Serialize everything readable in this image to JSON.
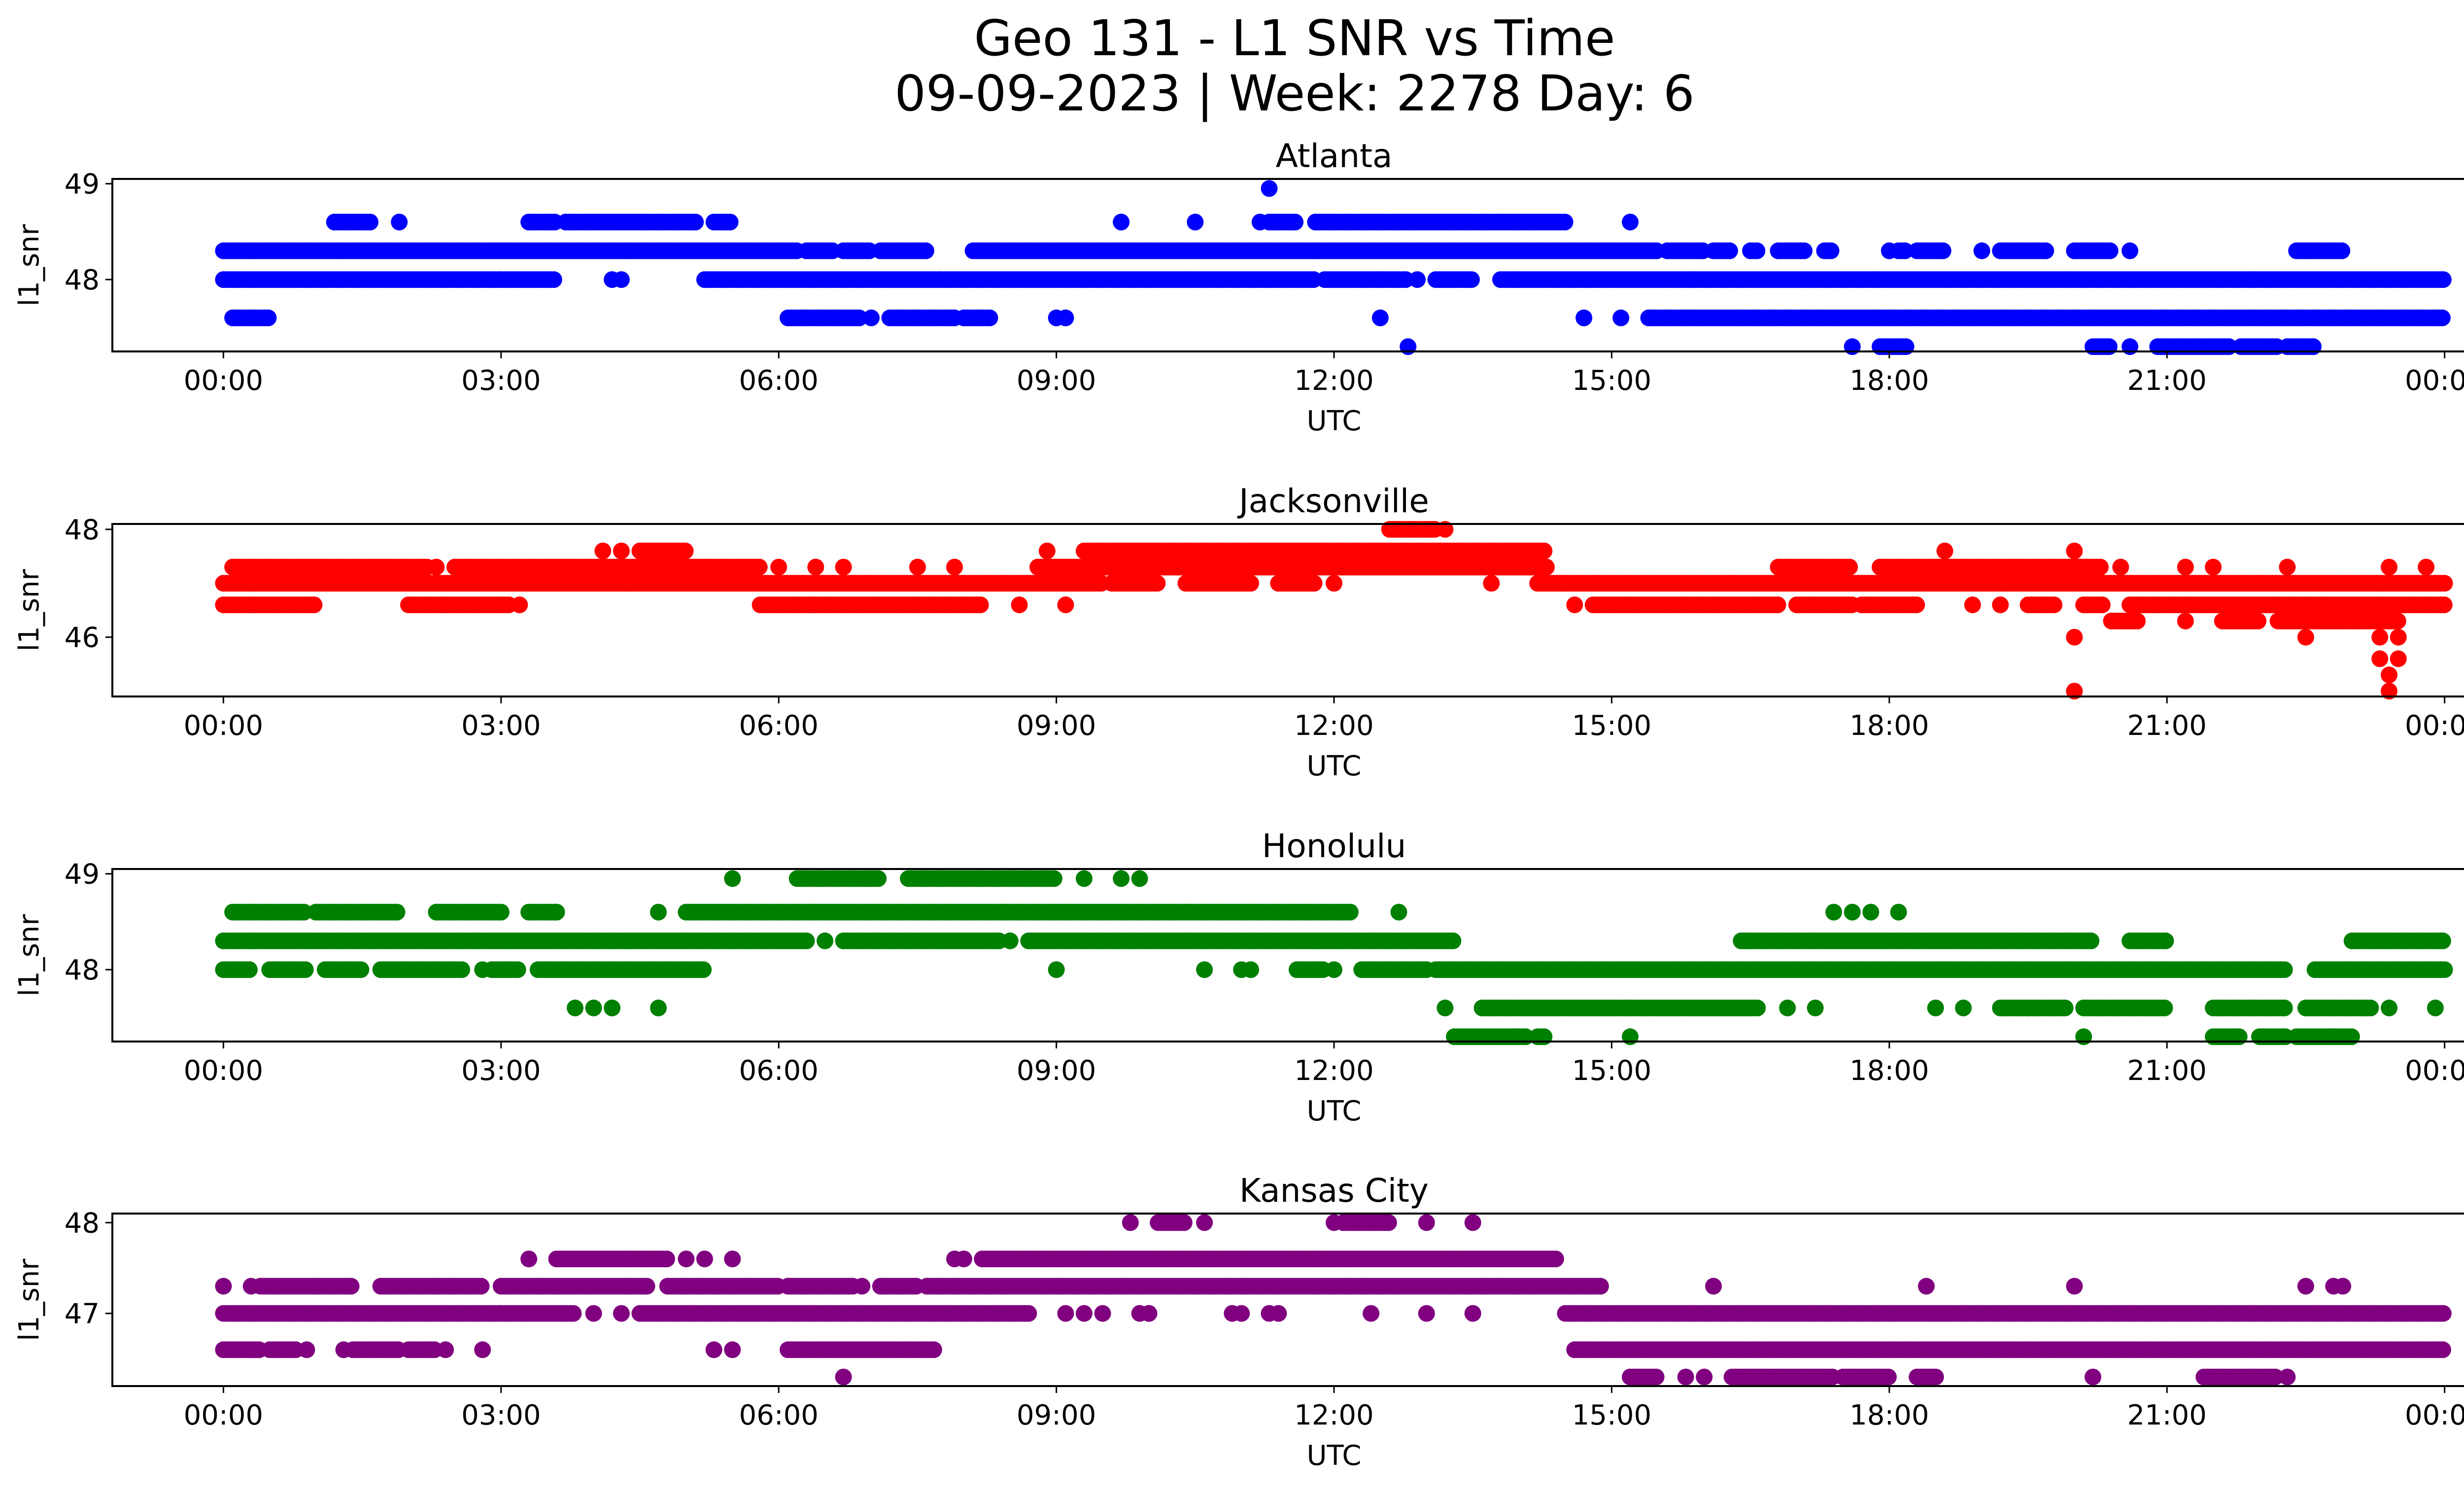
{
  "figure": {
    "title_line1": "Geo 131 - L1 SNR vs Time",
    "title_line2": "09-09-2023 | Week: 2278 Day: 6"
  },
  "chart_data": [
    {
      "type": "scatter",
      "title": "Atlanta",
      "xlabel": "UTC",
      "ylabel": "l1_snr",
      "color": "#0000ff",
      "x_ticks": [
        "00:00",
        "03:00",
        "06:00",
        "09:00",
        "12:00",
        "15:00",
        "18:00",
        "21:00",
        "00:00"
      ],
      "x_unit": "hours UTC",
      "xlim": [
        -1.2,
        25.2
      ],
      "y_ticks": [
        48,
        49
      ],
      "ylim": [
        47.25,
        49.05
      ],
      "series": [
        {
          "y": 48.3,
          "ranges": [
            [
              0.0,
              6.2
            ],
            [
              6.3,
              6.6
            ],
            [
              6.7,
              7.0
            ],
            [
              7.1,
              7.6
            ],
            [
              8.1,
              15.5
            ],
            [
              15.6,
              16.0
            ],
            [
              16.1,
              16.3
            ],
            [
              16.5,
              16.6
            ],
            [
              16.8,
              17.1
            ],
            [
              17.3,
              17.4
            ],
            [
              18.1,
              18.2
            ],
            [
              18.3,
              18.6
            ],
            [
              19.2,
              19.7
            ],
            [
              20.0,
              20.4
            ],
            [
              22.4,
              22.9
            ]
          ],
          "points": [
            18.0,
            19.0,
            20.6,
            22.5
          ]
        },
        {
          "y": 48.0,
          "ranges": [
            [
              0.0,
              3.6
            ],
            [
              5.2,
              11.8
            ],
            [
              11.9,
              12.8
            ],
            [
              13.1,
              13.5
            ],
            [
              13.8,
              24.0
            ]
          ],
          "points": [
            4.2,
            4.3,
            12.9,
            13.2,
            14.0
          ]
        },
        {
          "y": 47.6,
          "ranges": [
            [
              0.1,
              0.5
            ],
            [
              6.1,
              6.9
            ],
            [
              7.2,
              7.9
            ],
            [
              8.0,
              8.3
            ],
            [
              15.4,
              24.0
            ]
          ],
          "points": [
            8.2,
            9.0,
            9.1,
            12.5,
            14.7,
            15.1,
            7.0,
            7.3
          ]
        },
        {
          "y": 48.6,
          "ranges": [
            [
              1.2,
              1.6
            ],
            [
              3.3,
              3.6
            ],
            [
              3.7,
              5.1
            ],
            [
              5.3,
              5.5
            ],
            [
              11.3,
              11.6
            ],
            [
              11.8,
              14.5
            ]
          ],
          "points": [
            1.9,
            9.7,
            10.5,
            11.2,
            15.2
          ]
        },
        {
          "y": 48.95,
          "ranges": [],
          "points": [
            11.3
          ]
        },
        {
          "y": 47.3,
          "ranges": [
            [
              17.9,
              18.2
            ],
            [
              20.2,
              20.4
            ],
            [
              20.9,
              21.7
            ],
            [
              21.8,
              22.2
            ],
            [
              22.3,
              22.6
            ]
          ],
          "points": [
            12.8,
            17.6,
            20.6,
            21.9
          ]
        }
      ]
    },
    {
      "type": "scatter",
      "title": "Jacksonville",
      "xlabel": "UTC",
      "ylabel": "l1_snr",
      "color": "#ff0000",
      "x_ticks": [
        "00:00",
        "03:00",
        "06:00",
        "09:00",
        "12:00",
        "15:00",
        "18:00",
        "21:00",
        "00:00"
      ],
      "x_unit": "hours UTC",
      "xlim": [
        -1.2,
        25.2
      ],
      "y_ticks": [
        46,
        48
      ],
      "ylim": [
        44.9,
        48.1
      ],
      "series": [
        {
          "y": 47.0,
          "ranges": [
            [
              0.0,
              9.5
            ],
            [
              9.6,
              10.1
            ],
            [
              10.4,
              11.1
            ],
            [
              11.4,
              11.8
            ],
            [
              14.2,
              24.0
            ]
          ],
          "points": [
            12.0,
            13.7
          ]
        },
        {
          "y": 47.3,
          "ranges": [
            [
              0.1,
              2.2
            ],
            [
              2.5,
              5.8
            ],
            [
              8.8,
              14.3
            ],
            [
              17.9,
              20.3
            ],
            [
              16.8,
              17.6
            ]
          ],
          "points": [
            2.3,
            6.0,
            6.4,
            6.7,
            7.5,
            7.9,
            20.5,
            21.2,
            21.5,
            22.3,
            23.4,
            23.8
          ]
        },
        {
          "y": 46.6,
          "ranges": [
            [
              0.0,
              1.0
            ],
            [
              2.0,
              3.1
            ],
            [
              5.8,
              8.2
            ],
            [
              14.8,
              16.8
            ],
            [
              17.0,
              17.6
            ],
            [
              17.7,
              18.3
            ],
            [
              19.5,
              19.8
            ],
            [
              20.1,
              20.3
            ],
            [
              20.6,
              24.0
            ]
          ],
          "points": [
            3.2,
            8.6,
            9.1,
            14.6,
            18.9,
            19.2,
            20.3
          ]
        },
        {
          "y": 47.6,
          "ranges": [
            [
              4.5,
              5.0
            ],
            [
              9.3,
              14.3
            ]
          ],
          "points": [
            4.1,
            4.3,
            8.9,
            18.6,
            20.0
          ]
        },
        {
          "y": 48.0,
          "ranges": [
            [
              12.6,
              13.1
            ]
          ],
          "points": [
            13.2
          ]
        },
        {
          "y": 46.3,
          "ranges": [
            [
              20.4,
              20.7
            ],
            [
              21.6,
              22.0
            ],
            [
              22.2,
              23.5
            ]
          ],
          "points": [
            21.2,
            21.7,
            20.6
          ]
        },
        {
          "y": 46.0,
          "ranges": [],
          "points": [
            20.0,
            22.5,
            23.3,
            23.5
          ]
        },
        {
          "y": 45.6,
          "ranges": [],
          "points": [
            23.3,
            23.5
          ]
        },
        {
          "y": 45.3,
          "ranges": [],
          "points": [
            23.4
          ]
        },
        {
          "y": 45.0,
          "ranges": [],
          "points": [
            20.0,
            23.4
          ]
        }
      ]
    },
    {
      "type": "scatter",
      "title": "Honolulu",
      "xlabel": "UTC",
      "ylabel": "l1_snr",
      "color": "#008000",
      "x_ticks": [
        "00:00",
        "03:00",
        "06:00",
        "09:00",
        "12:00",
        "15:00",
        "18:00",
        "21:00",
        "00:00"
      ],
      "x_unit": "hours UTC",
      "xlim": [
        -1.2,
        25.2
      ],
      "y_ticks": [
        48,
        49
      ],
      "ylim": [
        47.25,
        49.05
      ],
      "series": [
        {
          "y": 48.3,
          "ranges": [
            [
              0.0,
              6.3
            ],
            [
              6.7,
              8.4
            ],
            [
              8.7,
              13.3
            ],
            [
              16.4,
              20.2
            ],
            [
              20.6,
              21.0
            ],
            [
              23.0,
              24.0
            ]
          ],
          "points": [
            6.5,
            8.5
          ]
        },
        {
          "y": 48.0,
          "ranges": [
            [
              0.0,
              0.3
            ],
            [
              0.5,
              0.9
            ],
            [
              1.1,
              1.5
            ],
            [
              1.7,
              2.6
            ],
            [
              2.9,
              3.2
            ],
            [
              3.4,
              5.2
            ],
            [
              11.6,
              11.9
            ],
            [
              12.3,
              13.0
            ],
            [
              13.1,
              22.3
            ],
            [
              22.6,
              24.0
            ]
          ],
          "points": [
            1.2,
            2.8,
            9.0,
            10.6,
            11.0,
            11.1,
            12.0
          ]
        },
        {
          "y": 48.6,
          "ranges": [
            [
              0.1,
              0.9
            ],
            [
              1.0,
              1.9
            ],
            [
              2.3,
              3.0
            ],
            [
              3.3,
              3.6
            ],
            [
              5.0,
              12.2
            ]
          ],
          "points": [
            3.6,
            4.7,
            12.7,
            17.4,
            17.6,
            17.8,
            18.1
          ]
        },
        {
          "y": 48.95,
          "ranges": [
            [
              6.2,
              7.1
            ],
            [
              7.4,
              9.0
            ]
          ],
          "points": [
            5.5,
            9.3,
            9.7,
            9.9
          ]
        },
        {
          "y": 47.6,
          "ranges": [
            [
              13.6,
              16.6
            ],
            [
              19.2,
              19.9
            ],
            [
              20.1,
              21.0
            ],
            [
              21.5,
              22.3
            ],
            [
              22.5,
              23.2
            ]
          ],
          "points": [
            3.8,
            4.0,
            4.2,
            4.7,
            13.2,
            16.9,
            17.2,
            18.5,
            18.8,
            19.5,
            23.4,
            23.9
          ]
        },
        {
          "y": 47.3,
          "ranges": [
            [
              13.3,
              14.1
            ],
            [
              14.2,
              14.3
            ],
            [
              21.5,
              21.8
            ],
            [
              22.0,
              22.3
            ],
            [
              22.4,
              23.0
            ]
          ],
          "points": [
            15.2,
            20.1
          ]
        }
      ]
    },
    {
      "type": "scatter",
      "title": "Kansas City",
      "xlabel": "UTC",
      "ylabel": "l1_snr",
      "color": "#800080",
      "x_ticks": [
        "00:00",
        "03:00",
        "06:00",
        "09:00",
        "12:00",
        "15:00",
        "18:00",
        "21:00",
        "00:00"
      ],
      "x_unit": "hours UTC",
      "xlim": [
        -1.2,
        25.2
      ],
      "y_ticks": [
        47,
        48
      ],
      "ylim": [
        46.2,
        48.1
      ],
      "series": [
        {
          "y": 47.0,
          "ranges": [
            [
              0.0,
              3.8
            ],
            [
              4.5,
              8.7
            ],
            [
              14.5,
              24.0
            ]
          ],
          "points": [
            4.0,
            4.3,
            9.1,
            9.3,
            9.5,
            9.9,
            10.0,
            10.0,
            10.9,
            11.0,
            11.3,
            11.4,
            12.4,
            13.0,
            13.5
          ]
        },
        {
          "y": 47.3,
          "ranges": [
            [
              0.4,
              1.4
            ],
            [
              1.7,
              2.8
            ],
            [
              3.0,
              4.6
            ],
            [
              4.8,
              6.0
            ],
            [
              6.1,
              6.8
            ],
            [
              7.1,
              7.5
            ],
            [
              7.6,
              14.9
            ]
          ],
          "points": [
            0.0,
            0.3,
            6.9,
            16.1,
            18.4,
            20.0,
            22.5,
            22.8,
            22.9
          ]
        },
        {
          "y": 46.6,
          "ranges": [
            [
              0.0,
              0.4
            ],
            [
              0.5,
              0.8
            ],
            [
              1.4,
              1.9
            ],
            [
              2.0,
              2.3
            ],
            [
              6.1,
              7.7
            ],
            [
              14.6,
              24.0
            ]
          ],
          "points": [
            0.9,
            1.3,
            2.4,
            2.8,
            5.3,
            5.5
          ]
        },
        {
          "y": 47.6,
          "ranges": [
            [
              3.6,
              4.8
            ],
            [
              8.2,
              14.4
            ]
          ],
          "points": [
            3.3,
            5.0,
            5.2,
            5.5,
            7.9,
            8.0
          ]
        },
        {
          "y": 48.0,
          "ranges": [
            [
              10.1,
              10.4
            ],
            [
              12.1,
              12.6
            ]
          ],
          "points": [
            9.8,
            10.6,
            12.0,
            13.0,
            13.5
          ]
        },
        {
          "y": 46.3,
          "ranges": [
            [
              15.2,
              15.5
            ],
            [
              16.3,
              17.4
            ],
            [
              17.5,
              18.0
            ],
            [
              18.3,
              18.5
            ],
            [
              21.4,
              22.2
            ]
          ],
          "points": [
            6.7,
            15.8,
            16.0,
            18.5,
            20.2,
            22.3
          ]
        }
      ]
    }
  ]
}
